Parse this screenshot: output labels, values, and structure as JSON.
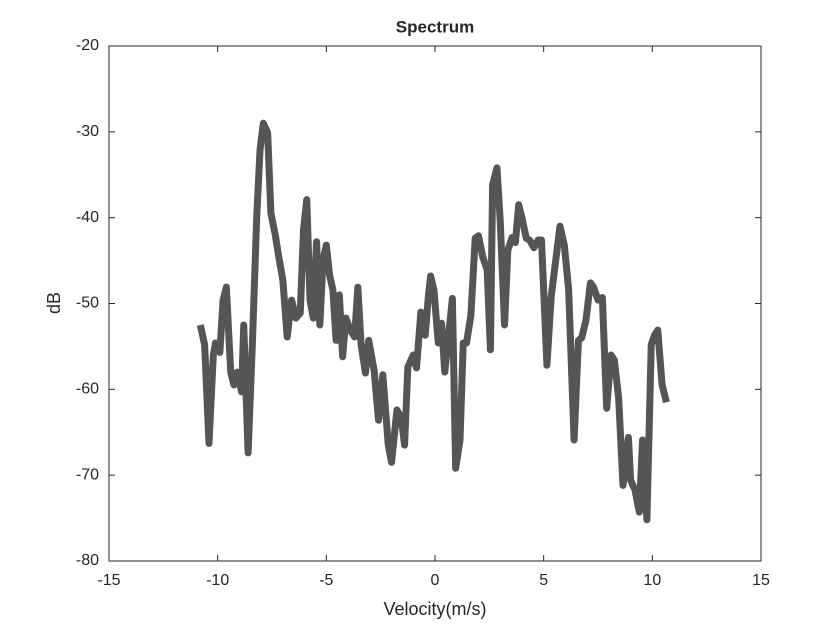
{
  "chart_data": {
    "type": "line",
    "title": "Spectrum",
    "xlabel": "Velocity(m/s)",
    "ylabel": "dB",
    "xlim": [
      -15,
      15
    ],
    "xticks": [
      -15,
      -10,
      -5,
      0,
      5,
      10,
      15
    ],
    "ylim": [
      -80,
      -20
    ],
    "yticks": [
      -80,
      -70,
      -60,
      -50,
      -40,
      -30,
      -20
    ],
    "grid": false,
    "series": [
      {
        "color": "#555555",
        "x": [
          -10.8,
          -10.6,
          -10.4,
          -10.2,
          -10.1,
          -9.9,
          -9.75,
          -9.6,
          -9.4,
          -9.25,
          -9.1,
          -8.9,
          -8.8,
          -8.6,
          -8.4,
          -8.2,
          -8.05,
          -7.9,
          -7.7,
          -7.55,
          -7.35,
          -7.2,
          -7,
          -6.8,
          -6.6,
          -6.4,
          -6.2,
          -6.05,
          -5.9,
          -5.75,
          -5.6,
          -5.45,
          -5.3,
          -5.15,
          -5,
          -4.85,
          -4.7,
          -4.55,
          -4.4,
          -4.25,
          -4.1,
          -3.9,
          -3.7,
          -3.55,
          -3.4,
          -3.2,
          -3.05,
          -2.8,
          -2.6,
          -2.4,
          -2.15,
          -2,
          -1.75,
          -1.55,
          -1.4,
          -1.25,
          -1,
          -0.85,
          -0.65,
          -0.45,
          -0.3,
          -0.2,
          -0.05,
          0.15,
          0.3,
          0.45,
          0.65,
          0.8,
          0.95,
          1.15,
          1.3,
          1.45,
          1.65,
          1.85,
          2,
          2.2,
          2.4,
          2.55,
          2.65,
          2.85,
          3,
          3.2,
          3.35,
          3.55,
          3.7,
          3.85,
          4,
          4.2,
          4.35,
          4.55,
          4.75,
          4.9,
          5.15,
          5.35,
          5.5,
          5.75,
          5.95,
          6.15,
          6.4,
          6.6,
          6.75,
          6.95,
          7.15,
          7.3,
          7.5,
          7.7,
          7.9,
          8.1,
          8.25,
          8.45,
          8.65,
          8.9,
          9,
          9.2,
          9.4,
          9.55,
          9.75,
          9.95,
          10.1,
          10.25,
          10.45,
          10.65
        ],
        "values": [
          -52.5,
          -54.8,
          -66.3,
          -56,
          -54.6,
          -55.7,
          -49.6,
          -48.1,
          -58,
          -59.5,
          -58,
          -60.3,
          -52.5,
          -67.4,
          -54.5,
          -39.7,
          -32.1,
          -29,
          -30.1,
          -39.5,
          -42,
          -44.4,
          -47.3,
          -53.9,
          -49.6,
          -51.7,
          -51.1,
          -41.4,
          -37.9,
          -49.6,
          -51.7,
          -42.8,
          -52.5,
          -44.9,
          -43.2,
          -46.7,
          -48.4,
          -54.3,
          -49,
          -56.2,
          -51.7,
          -53.1,
          -53.9,
          -48.1,
          -54.8,
          -58.1,
          -54.3,
          -57.8,
          -63.6,
          -58.3,
          -66.5,
          -68.5,
          -62.4,
          -63.4,
          -66.5,
          -57.4,
          -56,
          -57.5,
          -51,
          -53.7,
          -49,
          -46.8,
          -48.4,
          -54.6,
          -52.3,
          -58,
          -53.1,
          -49.4,
          -69.2,
          -65.9,
          -54.6,
          -54.6,
          -51.4,
          -42.4,
          -42.1,
          -44.6,
          -46.1,
          -55.4,
          -36.2,
          -34.2,
          -40.3,
          -52.5,
          -43.8,
          -42.3,
          -42.9,
          -38.5,
          -40,
          -42.4,
          -42.6,
          -43.5,
          -42.6,
          -42.6,
          -57.2,
          -49.1,
          -46.1,
          -41,
          -43.2,
          -48.4,
          -65.9,
          -54.3,
          -54,
          -51.9,
          -47.6,
          -48.1,
          -49.6,
          -49.3,
          -62.2,
          -56,
          -56.6,
          -61,
          -71.2,
          -65.6,
          -70.6,
          -71.7,
          -74.3,
          -65.9,
          -75.2,
          -54.8,
          -53.7,
          -53.1,
          -59.5,
          -61.5
        ]
      }
    ]
  }
}
